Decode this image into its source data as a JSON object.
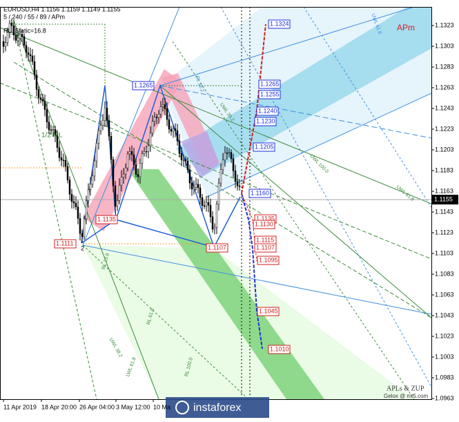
{
  "header": {
    "symbol_line": "EURUSD,H4  1.1156 1.1159 1.1149 1.1155",
    "settings": "5 / 240 / 55 / 89 / APm",
    "static": "RL_Static=16.8"
  },
  "price_axis": {
    "labels": [
      "1.1323",
      "1.1303",
      "1.1283",
      "1.1263",
      "1.1243",
      "1.1223",
      "1.1203",
      "1.1183",
      "1.1163",
      "1.1143",
      "1.1123",
      "1.1103",
      "1.1083",
      "1.1063",
      "1.1043",
      "1.1023",
      "1.1003",
      "1.0983",
      "1.0963"
    ],
    "current": "1.1155"
  },
  "time_axis": {
    "labels": [
      "11 Apr 2019",
      "18 Apr 20:00",
      "26 Apr 04:00",
      "3 May 12:00",
      "10 Ma"
    ]
  },
  "level_labels": [
    "1.1324",
    "1.1265",
    "1.1265",
    "1.1255",
    "1.1240",
    "1.1230",
    "1.1205",
    "1.1160",
    "1.1135",
    "1.1135",
    "1.1130",
    "1.1115",
    "1.1107",
    "1.1107",
    "1.1111",
    "1.1095",
    "1.1045",
    "1.1010"
  ],
  "line_labels": [
    "UWL 61.8",
    "UWL 100.0",
    "UWL 61.8",
    "UWL 38.2",
    "RL 38.2",
    "RL 23.6",
    "RL 61.8",
    "LWL 61.8",
    "RL 100.0",
    "UWL 38.2"
  ],
  "annotations": {
    "apm": "APm",
    "half_ml": "1/2 ML",
    "credits": "APLs & ZUP",
    "author": "Gelox @ mt5.com",
    "pivot": "2"
  },
  "watermark": "instaforex"
}
